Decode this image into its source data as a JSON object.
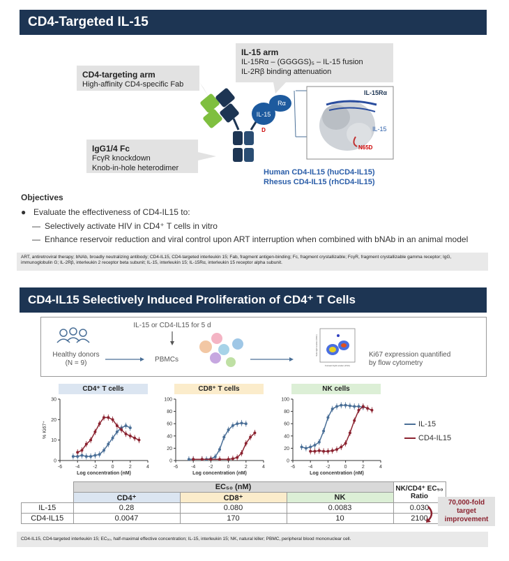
{
  "section1": {
    "title": "CD4-Targeted IL-15",
    "il15_arm": {
      "heading": "IL-15 arm",
      "line1": "IL-15Rα – (GGGGS)₅ – IL-15 fusion",
      "line2": "IL-2Rβ binding attenuation"
    },
    "cd4_arm": {
      "heading": "CD4-targeting arm",
      "line1": "High-affinity CD4-specific Fab"
    },
    "fc": {
      "heading": "IgG1/4 Fc",
      "line1": "FcγR knockdown",
      "line2": "Knob-in-hole heterodimer"
    },
    "diagram_labels": {
      "il15": "IL-15",
      "ralpha": "Rα",
      "d": "D",
      "struct_il15ra": "IL-15Rα",
      "struct_il15": "IL-15",
      "struct_n65d": "N65D"
    },
    "human_name": "Human CD4-IL15 (huCD4-IL15)",
    "rhesus_name": "Rhesus CD4-IL15 (rhCD4-IL15)",
    "objectives": {
      "title": "Objectives",
      "bullet": "Evaluate the effectiveness of CD4-IL15 to:",
      "sub1": "Selectively activate HIV in CD4⁺ T cells in vitro",
      "sub2": "Enhance reservoir reduction and viral control upon ART interruption when combined with bNAb in an animal model"
    },
    "abbreviations": "ART, antiretroviral therapy; bNAb, broadly neutralizing antibody; CD4-IL15, CD4-targeted interleukin 15; Fab, fragment antigen-binding; Fc, fragment crystallizable; FcγR, fragment crystallizable gamma receptor; IgG, immunoglobulin G; IL-2Rβ, interleukin 2 receptor beta subunit; IL-15, interleukin 15; IL-15Rα, interleukin 15 receptor alpha subunit."
  },
  "section2": {
    "title": "CD4-IL15 Selectively Induced Proliferation of CD4⁺ T Cells",
    "workflow": {
      "donors": "Healthy donors",
      "donors_n": "(N = 9)",
      "treatment": "IL-15 or CD4-IL15 for 5 d",
      "pbmcs": "PBMCs",
      "readout1": "Ki67 expression quantified",
      "readout2": "by flow cytometry",
      "flow_y": "Side light scatter (SSC)",
      "flow_x": "Forward light scatter (FSC)"
    },
    "ylabel": "% Ki67⁺",
    "xlabel": "Log concentration (nM)",
    "legend": {
      "il15": "IL-15",
      "cd4il15": "CD4-IL15"
    },
    "colors": {
      "il15": "#4a6f97",
      "cd4il15": "#8b2330"
    },
    "table": {
      "header_ec50": "EC₅₀ (nM)",
      "header_ratio": "NK/CD4⁺ EC₅₀ Ratio",
      "cols": [
        "CD4⁺",
        "CD8⁺",
        "NK"
      ],
      "rows": [
        {
          "name": "IL-15",
          "cd4": "0.28",
          "cd8": "0.080",
          "nk": "0.0083",
          "ratio": "0.030"
        },
        {
          "name": "CD4-IL15",
          "cd4": "0.0047",
          "cd8": "170",
          "nk": "10",
          "ratio": "2100"
        }
      ]
    },
    "improvement": "70,000-fold target improvement",
    "footnote": "CD4-IL15, CD4-targeted interleukin 15; EC₅₀, half-maximal effective concentration; IL-15, interleukin 15; NK, natural killer; PBMC, peripheral blood mononuclear cell."
  },
  "chart_data": [
    {
      "type": "line",
      "title": "CD4⁺ T cells",
      "xlabel": "Log concentration (nM)",
      "ylabel": "% Ki67⁺",
      "xlim": [
        -6,
        4
      ],
      "ylim": [
        0,
        30
      ],
      "xticks": [
        -6,
        -4,
        -2,
        0,
        2,
        4
      ],
      "yticks": [
        0,
        10,
        20,
        30
      ],
      "series": [
        {
          "name": "IL-15",
          "x": [
            -4.5,
            -4,
            -3.5,
            -3,
            -2.5,
            -2,
            -1.5,
            -1,
            -0.5,
            0,
            0.5,
            1,
            1.5,
            2
          ],
          "y": [
            2,
            2,
            2.5,
            2,
            2,
            2.5,
            3,
            5,
            8,
            11,
            14,
            16,
            17,
            16
          ]
        },
        {
          "name": "CD4-IL15",
          "x": [
            -4,
            -3.5,
            -3,
            -2.5,
            -2,
            -1.5,
            -1,
            -0.5,
            0,
            0.5,
            1,
            1.5,
            2,
            2.5,
            3
          ],
          "y": [
            4,
            5,
            8,
            10,
            14,
            18,
            21,
            21,
            20,
            17,
            15,
            13,
            12,
            11,
            10
          ]
        }
      ]
    },
    {
      "type": "line",
      "title": "CD8⁺ T cells",
      "xlabel": "Log concentration (nM)",
      "ylabel": "",
      "xlim": [
        -6,
        4
      ],
      "ylim": [
        0,
        100
      ],
      "xticks": [
        -6,
        -4,
        -2,
        0,
        2,
        4
      ],
      "yticks": [
        0,
        20,
        40,
        60,
        80,
        100
      ],
      "series": [
        {
          "name": "IL-15",
          "x": [
            -4.5,
            -4,
            -3,
            -2.5,
            -2,
            -1.5,
            -1,
            -0.5,
            0,
            0.5,
            1,
            1.5,
            2
          ],
          "y": [
            2,
            2,
            2,
            2,
            3,
            6,
            18,
            38,
            50,
            57,
            60,
            61,
            60
          ]
        },
        {
          "name": "CD4-IL15",
          "x": [
            -4,
            -3,
            -2,
            -1,
            0,
            0.5,
            1,
            1.5,
            2,
            2.5,
            3
          ],
          "y": [
            2,
            2,
            2,
            2,
            2,
            3,
            5,
            12,
            28,
            38,
            45
          ]
        }
      ]
    },
    {
      "type": "line",
      "title": "NK cells",
      "xlabel": "Log concentration (nM)",
      "ylabel": "",
      "xlim": [
        -6,
        4
      ],
      "ylim": [
        0,
        100
      ],
      "xticks": [
        -6,
        -4,
        -2,
        0,
        2,
        4
      ],
      "yticks": [
        0,
        20,
        40,
        60,
        80,
        100
      ],
      "series": [
        {
          "name": "IL-15",
          "x": [
            -5,
            -4.5,
            -4,
            -3.5,
            -3,
            -2.5,
            -2,
            -1.5,
            -1,
            -0.5,
            0,
            0.5,
            1,
            1.5,
            2
          ],
          "y": [
            22,
            20,
            22,
            25,
            30,
            48,
            70,
            84,
            88,
            90,
            90,
            89,
            88,
            88,
            87
          ]
        },
        {
          "name": "CD4-IL15",
          "x": [
            -4,
            -3.5,
            -3,
            -2.5,
            -2,
            -1.5,
            -1,
            -0.5,
            0,
            0.5,
            1,
            1.5,
            2,
            2.5,
            3
          ],
          "y": [
            15,
            15,
            16,
            15,
            15,
            16,
            18,
            22,
            28,
            45,
            65,
            82,
            88,
            85,
            82
          ]
        }
      ]
    }
  ]
}
